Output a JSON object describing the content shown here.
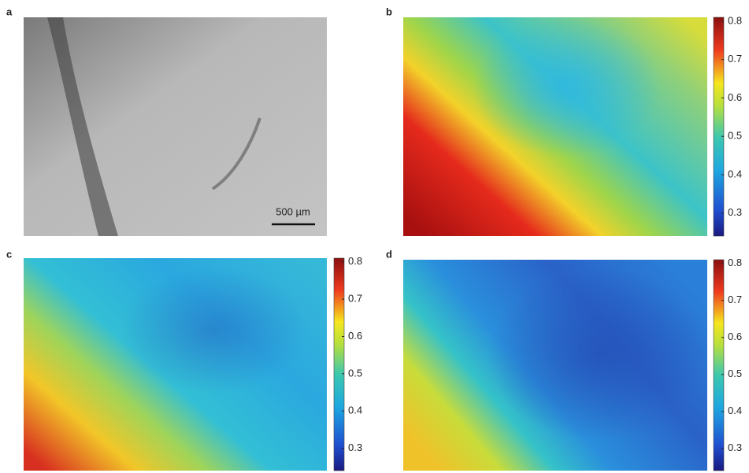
{
  "panels": [
    {
      "label": "a",
      "scale_bar": "500 µm"
    },
    {
      "label": "b",
      "colorbar": {
        "lim": [
          0.24,
          0.81
        ],
        "ticks": [
          0.3,
          0.4,
          0.5,
          0.6,
          0.7,
          0.8
        ]
      }
    },
    {
      "label": "c",
      "colorbar": {
        "lim": [
          0.24,
          0.81
        ],
        "ticks": [
          0.3,
          0.4,
          0.5,
          0.6,
          0.7,
          0.8
        ]
      }
    },
    {
      "label": "d",
      "colorbar": {
        "lim": [
          0.24,
          0.81
        ],
        "ticks": [
          0.3,
          0.4,
          0.5,
          0.6,
          0.7,
          0.8
        ]
      }
    }
  ]
}
